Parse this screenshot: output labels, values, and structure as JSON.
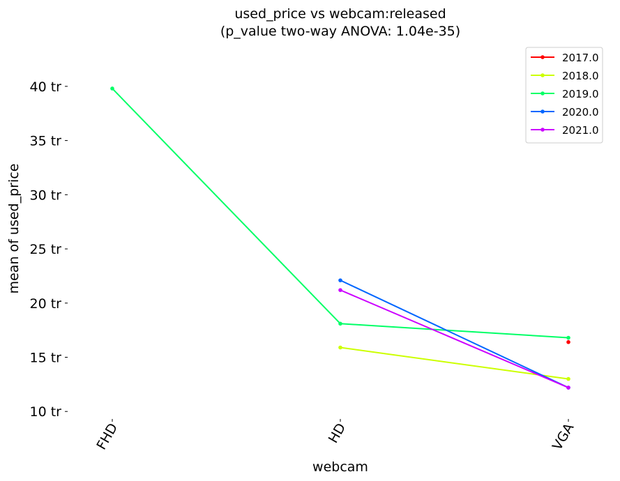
{
  "chart_data": {
    "type": "line",
    "title_line1": "used_price vs webcam:released",
    "title_line2": "(p_value two-way ANOVA: 1.04e-35)",
    "xlabel": "webcam",
    "ylabel": "mean of used_price",
    "categories": [
      "FHD",
      "HD",
      "VGA"
    ],
    "y_unit_suffix": " tr",
    "yticks": [
      10,
      15,
      20,
      25,
      30,
      35,
      40
    ],
    "ytick_labels": [
      "10 tr",
      "15 tr",
      "20 tr",
      "25 tr",
      "30 tr",
      "35 tr",
      "40 tr"
    ],
    "ylim": [
      9.5,
      42.5
    ],
    "grid": false,
    "legend_position": "top-right",
    "series": [
      {
        "name": "2017.0",
        "color": "#ff0000",
        "values": [
          null,
          null,
          16.4
        ]
      },
      {
        "name": "2018.0",
        "color": "#ccff00",
        "values": [
          null,
          15.9,
          13.0
        ]
      },
      {
        "name": "2019.0",
        "color": "#00ff66",
        "values": [
          39.8,
          18.1,
          16.8
        ]
      },
      {
        "name": "2020.0",
        "color": "#0066ff",
        "values": [
          null,
          22.1,
          12.2
        ]
      },
      {
        "name": "2021.0",
        "color": "#cc00ff",
        "values": [
          null,
          21.2,
          12.2
        ]
      }
    ]
  }
}
